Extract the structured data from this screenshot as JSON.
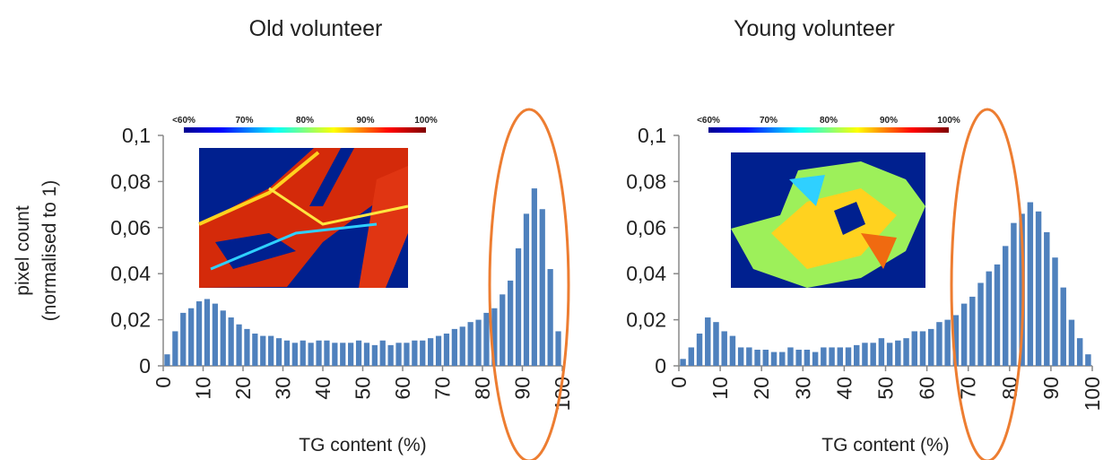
{
  "chart_data": [
    {
      "type": "histogram",
      "title": "Old volunteer",
      "xlabel": "TG content (%)",
      "ylabel": [
        "pixel count",
        "(normalised to 1)"
      ],
      "colorbar_labels": [
        "<60%",
        "70%",
        "80%",
        "90%",
        "100%"
      ],
      "color": "#4f81bd",
      "bins": [
        0,
        2,
        4,
        6,
        8,
        10,
        12,
        14,
        16,
        18,
        20,
        22,
        24,
        26,
        28,
        30,
        32,
        34,
        36,
        38,
        40,
        42,
        44,
        46,
        48,
        50,
        52,
        54,
        56,
        58,
        60,
        62,
        64,
        66,
        68,
        70,
        72,
        74,
        76,
        78,
        80,
        82,
        84,
        86,
        88,
        90,
        92,
        94,
        96,
        98,
        100
      ],
      "values": [
        0.005,
        0.015,
        0.023,
        0.025,
        0.028,
        0.029,
        0.027,
        0.024,
        0.021,
        0.018,
        0.016,
        0.014,
        0.013,
        0.013,
        0.012,
        0.011,
        0.01,
        0.011,
        0.01,
        0.011,
        0.011,
        0.01,
        0.01,
        0.01,
        0.011,
        0.01,
        0.009,
        0.011,
        0.009,
        0.01,
        0.01,
        0.011,
        0.011,
        0.012,
        0.013,
        0.014,
        0.016,
        0.017,
        0.019,
        0.02,
        0.023,
        0.025,
        0.031,
        0.037,
        0.051,
        0.066,
        0.077,
        0.068,
        0.042,
        0.015
      ],
      "xlim": [
        0,
        100
      ],
      "xticks": [
        0,
        10,
        20,
        30,
        40,
        50,
        60,
        70,
        80,
        90,
        100
      ],
      "ylim": [
        0,
        0.1
      ],
      "yticks": [
        0,
        {
          "value": 0.02,
          "label": "0,02"
        },
        {
          "value": 0.04,
          "label": "0,04"
        },
        {
          "value": 0.06,
          "label": "0,06"
        },
        {
          "value": 0.08,
          "label": "0,08"
        },
        {
          "value": 0.1,
          "label": "0,1"
        }
      ]
    },
    {
      "type": "histogram",
      "title": "Young volunteer",
      "xlabel": "TG content (%)",
      "colorbar_labels": [
        "<60%",
        "70%",
        "80%",
        "90%",
        "100%"
      ],
      "color": "#4f81bd",
      "bins": [
        0,
        2,
        4,
        6,
        8,
        10,
        12,
        14,
        16,
        18,
        20,
        22,
        24,
        26,
        28,
        30,
        32,
        34,
        36,
        38,
        40,
        42,
        44,
        46,
        48,
        50,
        52,
        54,
        56,
        58,
        60,
        62,
        64,
        66,
        68,
        70,
        72,
        74,
        76,
        78,
        80,
        82,
        84,
        86,
        88,
        90,
        92,
        94,
        96,
        98,
        100
      ],
      "values": [
        0.003,
        0.008,
        0.014,
        0.021,
        0.019,
        0.015,
        0.013,
        0.008,
        0.008,
        0.007,
        0.007,
        0.006,
        0.006,
        0.008,
        0.007,
        0.007,
        0.006,
        0.008,
        0.008,
        0.008,
        0.008,
        0.009,
        0.01,
        0.01,
        0.012,
        0.01,
        0.011,
        0.012,
        0.015,
        0.015,
        0.016,
        0.019,
        0.02,
        0.022,
        0.027,
        0.03,
        0.036,
        0.041,
        0.044,
        0.052,
        0.062,
        0.066,
        0.071,
        0.067,
        0.058,
        0.047,
        0.034,
        0.02,
        0.012,
        0.005
      ],
      "xlim": [
        0,
        100
      ],
      "xticks": [
        0,
        10,
        20,
        30,
        40,
        50,
        60,
        70,
        80,
        90,
        100
      ],
      "ylim": [
        0,
        0.1
      ],
      "yticks": [
        0,
        {
          "value": 0.02,
          "label": "0,02"
        },
        {
          "value": 0.04,
          "label": "0,04"
        },
        {
          "value": 0.06,
          "label": "0,06"
        },
        {
          "value": 0.08,
          "label": "0,08"
        },
        {
          "value": 0.1,
          "label": "0,1"
        }
      ]
    }
  ]
}
